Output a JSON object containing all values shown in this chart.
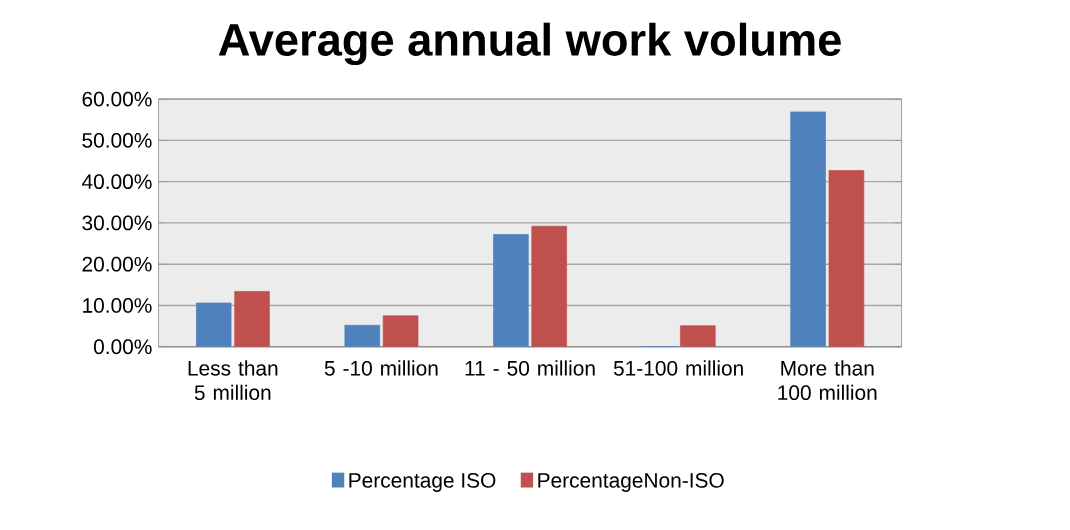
{
  "chart_data": {
    "type": "bar",
    "title": "Average annual work volume",
    "categories": [
      "Less than 5 million",
      "5 -10 million",
      "11 - 50 million",
      "51-100 million",
      "More than 100 million"
    ],
    "series": [
      {
        "name": "Percentage ISO",
        "color": "#4f81bd",
        "values": [
          10.6,
          5.2,
          27.2,
          0,
          56.9
        ]
      },
      {
        "name": "PercentageNon-ISO",
        "color": "#c0504d",
        "values": [
          13.4,
          7.5,
          29.2,
          5.1,
          42.7
        ]
      }
    ],
    "ylim": [
      0,
      60
    ],
    "yticks": [
      {
        "value": 0,
        "label": "0.00%"
      },
      {
        "value": 10,
        "label": "10.00%"
      },
      {
        "value": 20,
        "label": "20.00%"
      },
      {
        "value": 30,
        "label": "30.00%"
      },
      {
        "value": 40,
        "label": "40.00%"
      },
      {
        "value": 50,
        "label": "50.00%"
      },
      {
        "value": 60,
        "label": "60.00%"
      }
    ],
    "grid": "y",
    "legend": "bottom"
  }
}
